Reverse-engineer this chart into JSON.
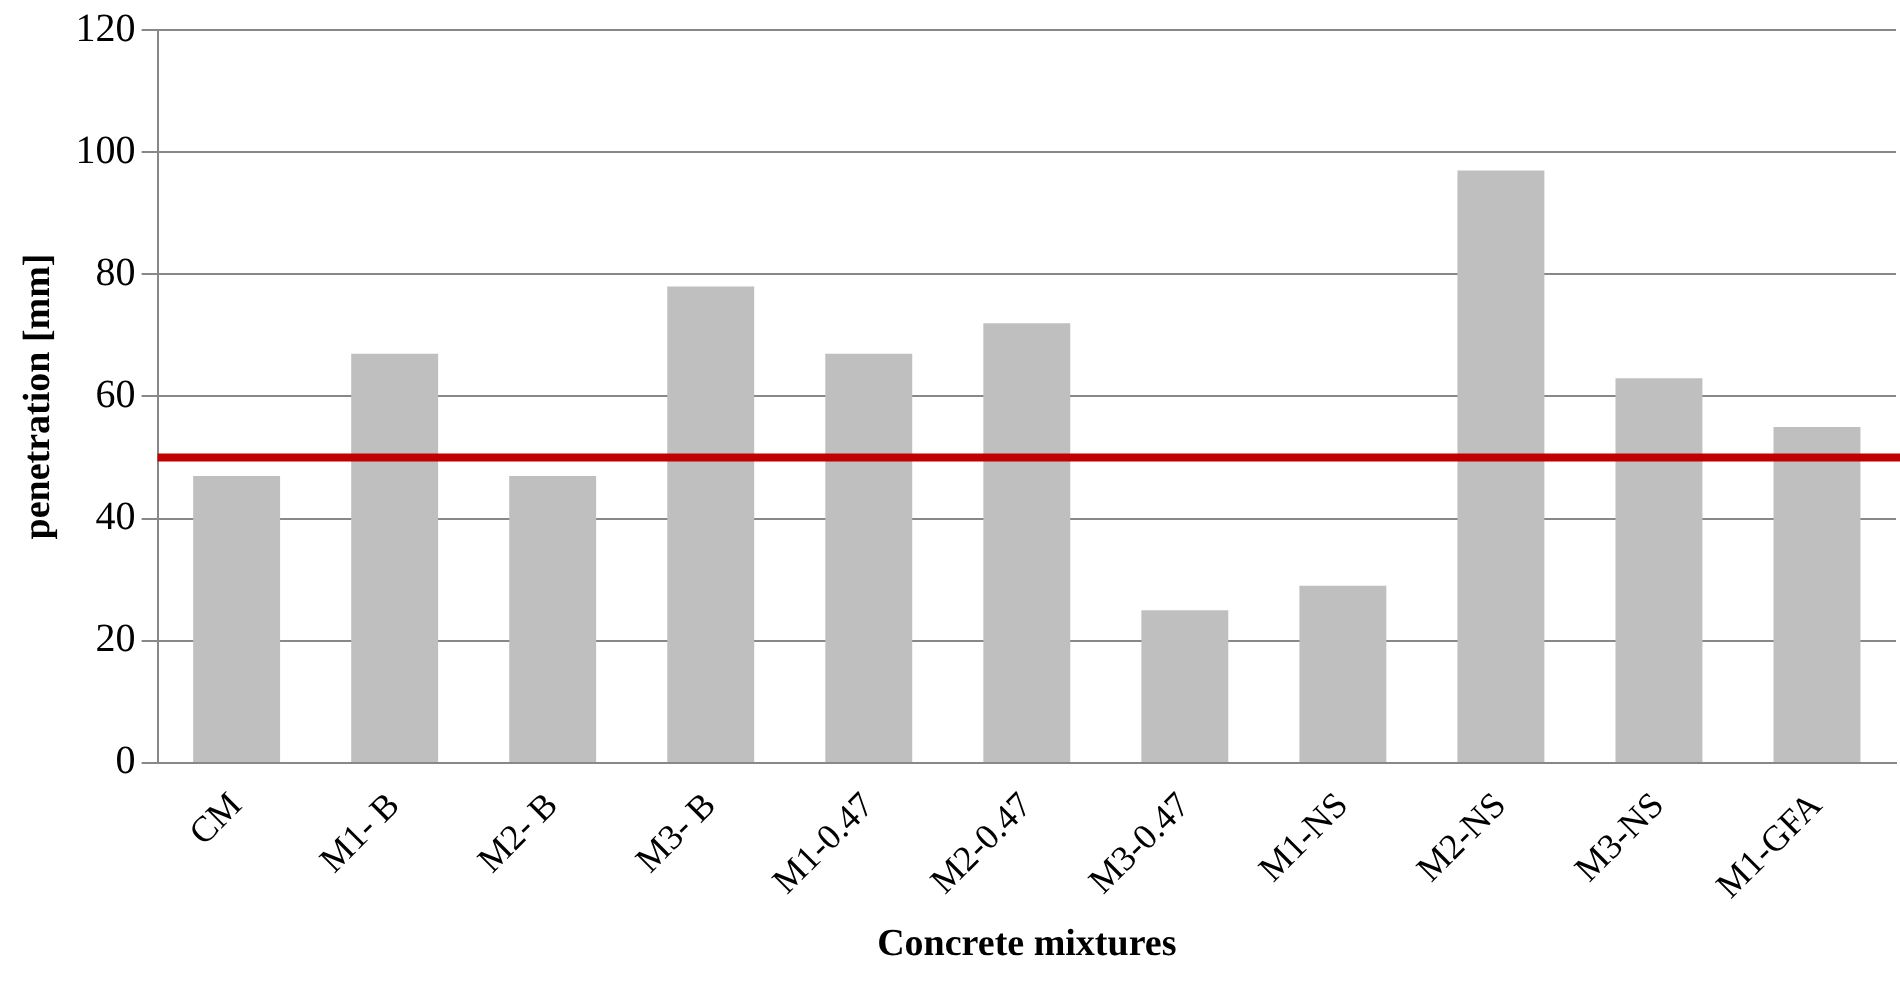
{
  "chart_data": {
    "type": "bar",
    "xlabel": "Concrete mixtures",
    "ylabel": "penetration [mm]",
    "categories": [
      "CM",
      "M1- B",
      "M2- B",
      "M3- B",
      "M1-0.47",
      "M2-0.47",
      "M3-0.47",
      "M1-NS",
      "M2-NS",
      "M3-NS",
      "M1-GFA"
    ],
    "values": [
      47,
      67,
      47,
      78,
      67,
      72,
      25,
      29,
      97,
      63,
      55
    ],
    "color": "#bfbfbf",
    "ylim": [
      0,
      120
    ],
    "yticks": [
      0,
      20,
      40,
      60,
      80,
      100,
      120
    ],
    "grid": "y",
    "ref_lines": [
      {
        "axis": "y",
        "value": 50,
        "color": "#c00000"
      }
    ]
  }
}
